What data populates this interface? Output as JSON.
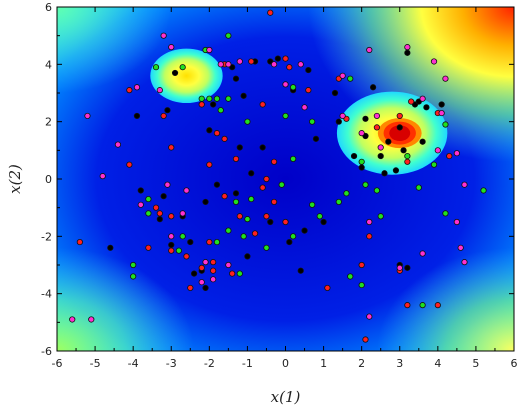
{
  "chart_data": {
    "type": "scatter",
    "title": "",
    "xlabel": "x(1)",
    "ylabel": "x(2)",
    "xlim": [
      -6,
      6
    ],
    "ylim": [
      -6,
      6
    ],
    "xticks": [
      -6,
      -5,
      -4,
      -3,
      -2,
      -1,
      0,
      1,
      2,
      3,
      4,
      5,
      6
    ],
    "yticks": [
      -6,
      -4,
      -2,
      0,
      2,
      4,
      6
    ],
    "xtick_labels": [
      "-6",
      "-5",
      "-4",
      "-3",
      "-2",
      "-1",
      "0",
      "1",
      "2",
      "3",
      "4",
      "5",
      "6"
    ],
    "ytick_labels": [
      "-6",
      "-4",
      "-2",
      "0",
      "2",
      "4",
      "6"
    ],
    "grid": false,
    "legend": "none",
    "background": {
      "type": "heatmap",
      "colormap": "jet",
      "hot_regions": [
        {
          "center": [
            -2.6,
            3.6
          ],
          "radius": 0.95
        },
        {
          "center": [
            2.8,
            1.6
          ],
          "radius": 1.45
        },
        {
          "center": [
            3.0,
            1.6
          ],
          "radius": 0.5
        }
      ]
    },
    "series": [
      {
        "color": "#000000",
        "points": [
          [
            -0.4,
            4.1
          ],
          [
            -1.4,
            3.9
          ],
          [
            0.6,
            3.8
          ],
          [
            -2.9,
            3.7
          ],
          [
            -3.9,
            2.2
          ],
          [
            -3.1,
            2.4
          ],
          [
            -1.9,
            2.6
          ],
          [
            -1.1,
            2.9
          ],
          [
            0.2,
            3.1
          ],
          [
            1.3,
            3.0
          ],
          [
            2.3,
            3.2
          ],
          [
            3.4,
            2.6
          ],
          [
            3.2,
            4.4
          ],
          [
            2.1,
            1.5
          ],
          [
            2.6,
            0.2
          ],
          [
            2.9,
            0.3
          ],
          [
            3.6,
            1.3
          ],
          [
            2.7,
            1.3
          ],
          [
            1.8,
            0.8
          ],
          [
            2.5,
            0.8
          ],
          [
            3.1,
            1.0
          ],
          [
            1.4,
            2.0
          ],
          [
            -0.6,
            1.1
          ],
          [
            -1.8,
            -0.2
          ],
          [
            -2.7,
            -1.3
          ],
          [
            -2.1,
            -0.8
          ],
          [
            -3.2,
            -0.6
          ],
          [
            -3.8,
            -0.4
          ],
          [
            -1.3,
            -0.5
          ],
          [
            -4.6,
            -2.4
          ],
          [
            -2.4,
            -3.3
          ],
          [
            -2.2,
            -3.2
          ],
          [
            -3.0,
            -2.3
          ],
          [
            0.5,
            -1.8
          ],
          [
            -1.0,
            -2.7
          ],
          [
            0.4,
            -3.2
          ],
          [
            2.0,
            0.4
          ],
          [
            3.7,
            2.5
          ],
          [
            4.1,
            2.6
          ],
          [
            3.5,
            2.7
          ],
          [
            3.0,
            1.8
          ],
          [
            2.1,
            2.1
          ],
          [
            -1.3,
            3.5
          ],
          [
            -0.8,
            4.1
          ],
          [
            -0.2,
            4.2
          ],
          [
            -2.0,
            1.7
          ],
          [
            -1.2,
            1.1
          ],
          [
            3.0,
            -3.0
          ],
          [
            3.2,
            -3.1
          ],
          [
            -2.1,
            -3.8
          ],
          [
            -2.5,
            -2.2
          ],
          [
            -3.3,
            -1.4
          ],
          [
            1.0,
            -1.5
          ],
          [
            -0.4,
            -1.5
          ],
          [
            0.1,
            -2.2
          ],
          [
            -0.9,
            0.2
          ],
          [
            0.8,
            1.4
          ]
        ]
      },
      {
        "color": "#ff2020",
        "points": [
          [
            -0.4,
            5.8
          ],
          [
            2.1,
            -5.6
          ],
          [
            -0.5,
            0.0
          ],
          [
            -1.8,
            1.6
          ],
          [
            -1.6,
            4.0
          ],
          [
            -0.9,
            4.1
          ],
          [
            0.0,
            4.2
          ],
          [
            0.1,
            3.9
          ],
          [
            -0.6,
            2.6
          ],
          [
            -2.2,
            2.6
          ],
          [
            -3.2,
            2.2
          ],
          [
            -4.1,
            3.1
          ],
          [
            -3.0,
            1.1
          ],
          [
            -2.0,
            0.5
          ],
          [
            -1.3,
            0.7
          ],
          [
            -1.6,
            -0.6
          ],
          [
            -1.2,
            -1.3
          ],
          [
            -0.8,
            -1.9
          ],
          [
            -3.6,
            -2.4
          ],
          [
            -3.0,
            -2.5
          ],
          [
            -2.6,
            -2.7
          ],
          [
            -5.4,
            -2.2
          ],
          [
            -2.2,
            -3.1
          ],
          [
            -2.5,
            -3.8
          ],
          [
            -1.9,
            -3.2
          ],
          [
            -1.4,
            -3.3
          ],
          [
            1.1,
            -3.8
          ],
          [
            3.2,
            -4.4
          ],
          [
            4.0,
            -4.4
          ],
          [
            3.0,
            -3.2
          ],
          [
            3.2,
            0.6
          ],
          [
            4.0,
            2.3
          ],
          [
            1.6,
            2.1
          ],
          [
            2.4,
            1.8
          ],
          [
            3.0,
            2.2
          ],
          [
            3.3,
            2.7
          ],
          [
            0.6,
            3.1
          ],
          [
            1.4,
            3.5
          ],
          [
            -1.6,
            1.4
          ],
          [
            -0.3,
            0.6
          ],
          [
            -2.0,
            -2.2
          ],
          [
            -1.9,
            -2.9
          ],
          [
            -0.5,
            -1.3
          ],
          [
            -4.1,
            0.5
          ],
          [
            -3.4,
            -1.0
          ],
          [
            -3.0,
            -1.3
          ],
          [
            -0.6,
            -0.3
          ],
          [
            -0.3,
            -0.8
          ],
          [
            0.0,
            -1.5
          ],
          [
            -3.3,
            -1.2
          ],
          [
            4.3,
            0.8
          ],
          [
            2.2,
            -2.0
          ],
          [
            2.0,
            -3.0
          ]
        ]
      },
      {
        "color": "#20e020",
        "points": [
          [
            -2.1,
            4.5
          ],
          [
            -1.5,
            5.0
          ],
          [
            -2.7,
            3.9
          ],
          [
            -3.4,
            3.9
          ],
          [
            -2.2,
            2.8
          ],
          [
            -2.0,
            2.8
          ],
          [
            -1.7,
            2.4
          ],
          [
            -1.0,
            2.0
          ],
          [
            -1.8,
            2.8
          ],
          [
            0.0,
            2.2
          ],
          [
            0.2,
            3.2
          ],
          [
            0.7,
            2.0
          ],
          [
            1.7,
            3.5
          ],
          [
            2.0,
            0.6
          ],
          [
            3.9,
            0.5
          ],
          [
            3.5,
            -0.3
          ],
          [
            4.2,
            1.9
          ],
          [
            2.1,
            -0.2
          ],
          [
            2.4,
            -0.4
          ],
          [
            2.5,
            -1.3
          ],
          [
            1.6,
            -0.5
          ],
          [
            1.4,
            -0.8
          ],
          [
            0.9,
            -1.3
          ],
          [
            0.2,
            0.7
          ],
          [
            -0.1,
            -0.2
          ],
          [
            -0.9,
            -0.7
          ],
          [
            -1.3,
            -0.8
          ],
          [
            -1.0,
            -1.4
          ],
          [
            -1.5,
            -1.8
          ],
          [
            -1.8,
            -2.2
          ],
          [
            -2.8,
            -2.5
          ],
          [
            -3.6,
            -0.7
          ],
          [
            -4.0,
            -3.0
          ],
          [
            -4.0,
            -3.4
          ],
          [
            -1.2,
            -3.3
          ],
          [
            1.7,
            -3.4
          ],
          [
            2.0,
            -3.7
          ],
          [
            0.2,
            -2.0
          ],
          [
            0.7,
            -0.9
          ],
          [
            -0.5,
            -2.4
          ],
          [
            -3.6,
            -1.2
          ],
          [
            -2.7,
            -2.0
          ],
          [
            4.2,
            -1.2
          ],
          [
            5.2,
            -0.4
          ],
          [
            3.6,
            -4.4
          ],
          [
            3.2,
            0.8
          ],
          [
            -1.5,
            2.8
          ],
          [
            -1.1,
            -2.0
          ]
        ]
      },
      {
        "color": "#ff30d0",
        "points": [
          [
            -3.2,
            5.0
          ],
          [
            -2.0,
            4.5
          ],
          [
            -3.0,
            4.6
          ],
          [
            -3.9,
            3.2
          ],
          [
            -3.3,
            3.1
          ],
          [
            -5.2,
            2.2
          ],
          [
            -4.4,
            1.2
          ],
          [
            -1.7,
            4.0
          ],
          [
            -1.2,
            4.1
          ],
          [
            0.4,
            4.0
          ],
          [
            1.5,
            3.6
          ],
          [
            2.2,
            4.5
          ],
          [
            3.2,
            4.6
          ],
          [
            3.9,
            4.1
          ],
          [
            4.2,
            3.5
          ],
          [
            1.5,
            2.2
          ],
          [
            2.0,
            1.6
          ],
          [
            2.5,
            1.1
          ],
          [
            4.0,
            1.0
          ],
          [
            4.5,
            0.9
          ],
          [
            4.7,
            -0.2
          ],
          [
            4.5,
            -1.5
          ],
          [
            4.6,
            -2.4
          ],
          [
            4.7,
            -2.9
          ],
          [
            3.0,
            -3.1
          ],
          [
            2.2,
            -4.8
          ],
          [
            -5.1,
            -4.9
          ],
          [
            -5.6,
            -4.9
          ],
          [
            -4.8,
            0.1
          ],
          [
            -3.8,
            -0.9
          ],
          [
            -3.1,
            -0.2
          ],
          [
            -2.6,
            -0.4
          ],
          [
            -2.7,
            -1.2
          ],
          [
            -2.1,
            -2.9
          ],
          [
            -1.9,
            -3.5
          ],
          [
            -1.5,
            -3.0
          ],
          [
            -3.0,
            -2.0
          ],
          [
            0.5,
            2.5
          ],
          [
            0.0,
            3.3
          ],
          [
            -0.3,
            4.0
          ],
          [
            -1.5,
            4.0
          ],
          [
            3.6,
            2.8
          ],
          [
            3.6,
            -2.6
          ],
          [
            4.1,
            2.3
          ],
          [
            2.4,
            2.2
          ],
          [
            2.2,
            -1.5
          ],
          [
            -2.2,
            -3.6
          ]
        ]
      }
    ]
  }
}
